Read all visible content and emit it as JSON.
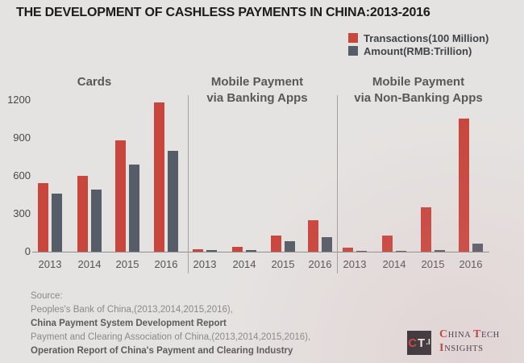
{
  "title": "THE DEVELOPMENT OF CASHLESS PAYMENTS IN CHINA:2013-2016",
  "legend": {
    "items": [
      {
        "label": "Transactions(100 Million)",
        "color": "#c9463d"
      },
      {
        "label": "Amount(RMB:Trillion)",
        "color": "#565d68"
      }
    ]
  },
  "chart_data": {
    "type": "bar",
    "title": "THE DEVELOPMENT OF CASHLESS PAYMENTS IN CHINA:2013-2016",
    "categories": [
      "2013",
      "2014",
      "2015",
      "2016"
    ],
    "yticks": [
      0,
      300,
      600,
      900,
      1200
    ],
    "ylim": [
      0,
      1200
    ],
    "grid": false,
    "legend_position": "top-right",
    "colors": {
      "transactions": "#c9463d",
      "amount": "#565d68"
    },
    "panels": [
      {
        "title_lines": [
          "Cards"
        ],
        "series": [
          {
            "name": "Transactions(100 Million)",
            "values": [
              540,
              600,
              880,
              1180
            ]
          },
          {
            "name": "Amount(RMB:Trillion)",
            "values": [
              460,
              490,
              690,
              800
            ]
          }
        ]
      },
      {
        "title_lines": [
          "Mobile Payment",
          "via Banking Apps"
        ],
        "series": [
          {
            "name": "Transactions(100 Million)",
            "values": [
              20,
              40,
              125,
              250
            ]
          },
          {
            "name": "Amount(RMB:Trillion)",
            "values": [
              10,
              15,
              85,
              115
            ]
          }
        ]
      },
      {
        "title_lines": [
          "Mobile Payment",
          "via Non-Banking Apps"
        ],
        "series": [
          {
            "name": "Transactions(100 Million)",
            "values": [
              30,
              130,
              350,
              1050
            ]
          },
          {
            "name": "Amount(RMB:Trillion)",
            "values": [
              2,
              4,
              15,
              65
            ]
          }
        ]
      }
    ]
  },
  "source": {
    "lines": [
      {
        "text": "Source:",
        "bold": false
      },
      {
        "text": "Peoples's Bank of China,(2013,2014,2015,2016),",
        "bold": false
      },
      {
        "text": "China Payment System Development Report",
        "bold": true
      },
      {
        "text": "Payment and Clearing Association of China,(2013,2014,2015,2016),",
        "bold": false
      },
      {
        "text": "Operation Report of China's Payment and Clearing Industry",
        "bold": true
      }
    ]
  },
  "logo": {
    "icon_c": "C",
    "icon_t": "T",
    "icon_i": ".I",
    "brand_l1_a": "C",
    "brand_l1_b": "HINA ",
    "brand_l1_c": "T",
    "brand_l1_d": "ECH",
    "brand_l2_a": "I",
    "brand_l2_b": "NSIGHTS"
  }
}
